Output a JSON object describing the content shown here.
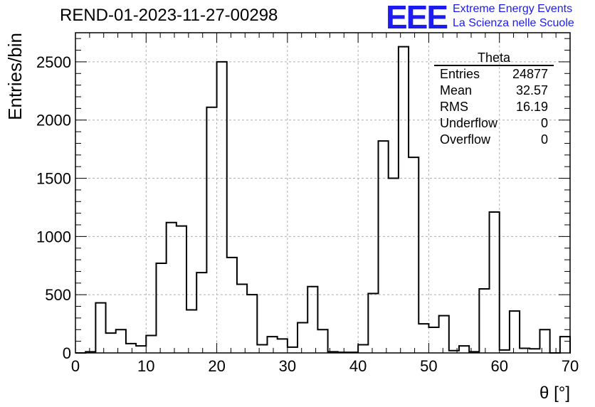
{
  "header": {
    "title": "REND-01-2023-11-27-00298"
  },
  "logo": {
    "mark": "EEE",
    "line1": "Extreme Energy Events",
    "line2": "La Scienza nelle Scuole",
    "color": "#1c1cf0"
  },
  "stats": {
    "name": "Theta",
    "rows": [
      {
        "label": "Entries",
        "value": "24877"
      },
      {
        "label": "Mean",
        "value": "32.57"
      },
      {
        "label": "RMS",
        "value": "16.19"
      },
      {
        "label": "Underflow",
        "value": "0"
      },
      {
        "label": "Overflow",
        "value": "0"
      }
    ]
  },
  "chart_data": {
    "type": "histogram",
    "xlabel": "θ [°]",
    "ylabel": "Entries/bin",
    "xlim": [
      0,
      70
    ],
    "ylim": [
      0,
      2750
    ],
    "bin_width": 1.4286,
    "xticks": [
      0,
      10,
      20,
      30,
      40,
      50,
      60,
      70
    ],
    "yticks": [
      0,
      500,
      1000,
      1500,
      2000,
      2500
    ],
    "grid": true,
    "line_color": "#000000",
    "values": [
      0,
      10,
      430,
      170,
      200,
      80,
      60,
      150,
      770,
      1120,
      1090,
      370,
      690,
      2110,
      2500,
      820,
      590,
      500,
      70,
      140,
      120,
      50,
      260,
      570,
      200,
      10,
      5,
      5,
      70,
      510,
      1820,
      1500,
      2630,
      1680,
      250,
      220,
      320,
      20,
      60,
      10,
      550,
      1210,
      25,
      360,
      40,
      35,
      200,
      0,
      140,
      0
    ]
  }
}
